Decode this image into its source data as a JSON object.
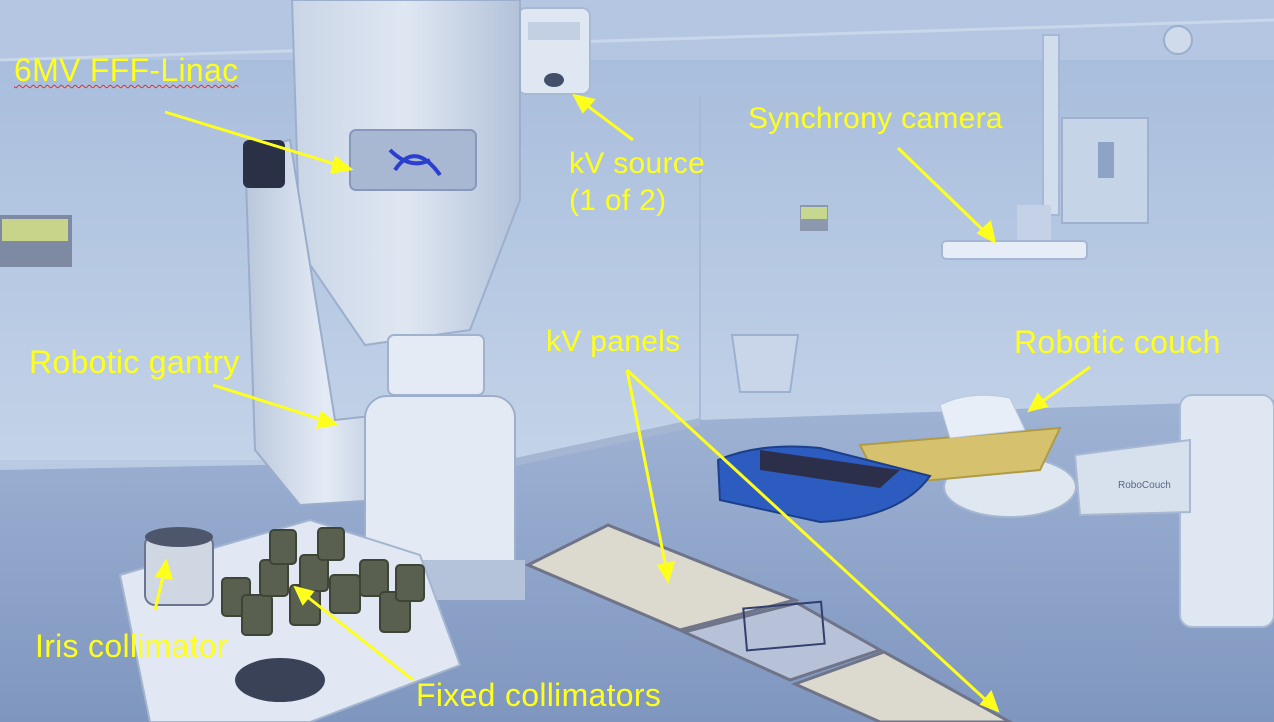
{
  "labels": {
    "linac": "6MV FFF-Linac",
    "kv_source_line1": "kV source",
    "kv_source_line2": "(1 of 2)",
    "synchrony_camera": "Synchrony camera",
    "robotic_gantry": "Robotic gantry",
    "kv_panels": "kV panels",
    "robotic_couch": "Robotic couch",
    "iris_collimator": "Iris collimator",
    "fixed_collimators": "Fixed collimators"
  },
  "couch_brand": "RoboCouch",
  "colors": {
    "annotation": "#ffff1e",
    "wall": "#b9cbe3",
    "floor": "#8fa4c8"
  }
}
